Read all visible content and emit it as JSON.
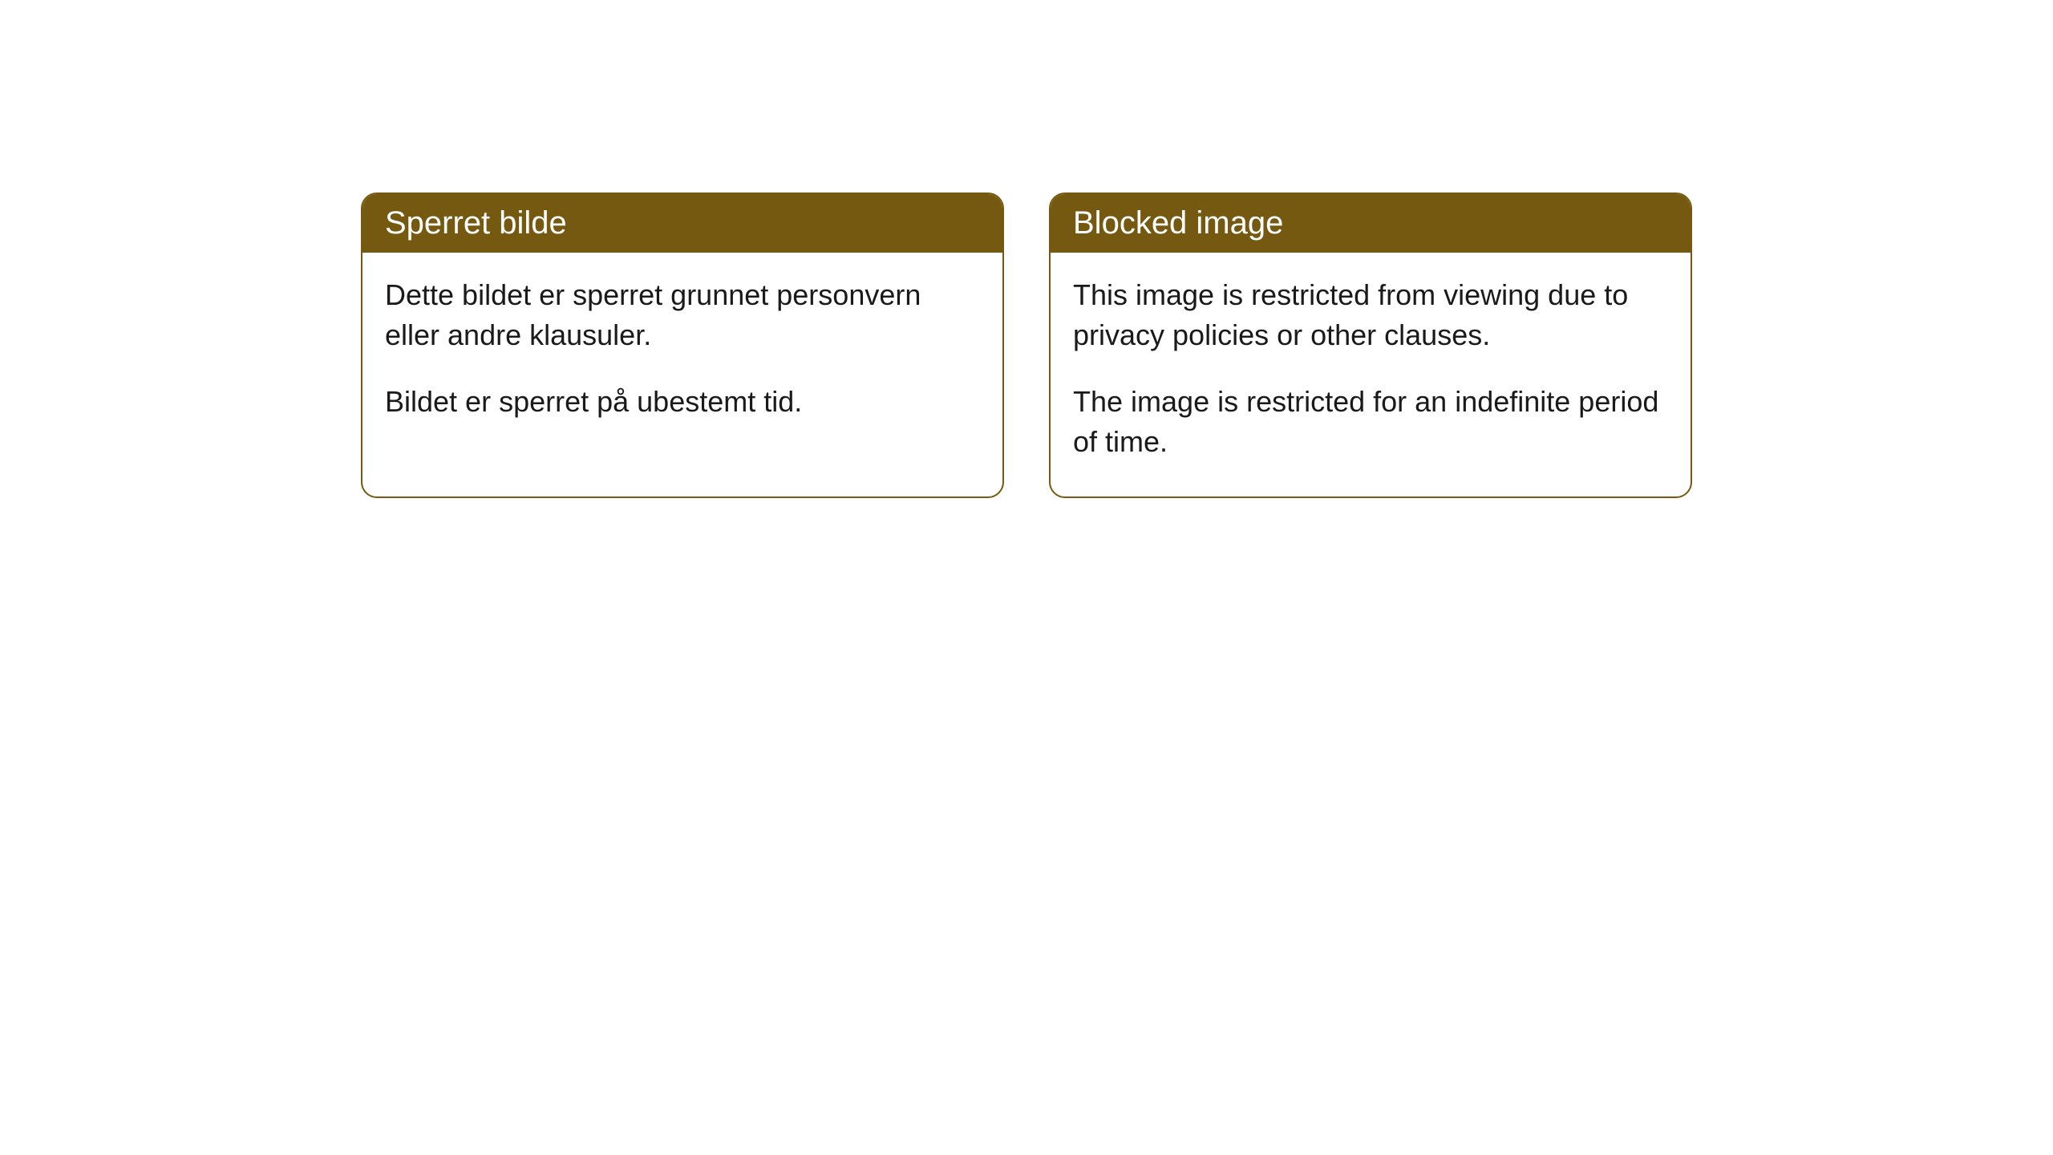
{
  "cards": [
    {
      "title": "Sperret bilde",
      "paragraph1": "Dette bildet er sperret grunnet personvern eller andre klausuler.",
      "paragraph2": "Bildet er sperret på ubestemt tid."
    },
    {
      "title": "Blocked image",
      "paragraph1": "This image is restricted from viewing due to privacy policies or other clauses.",
      "paragraph2": "The image is restricted for an indefinite period of time."
    }
  ],
  "styling": {
    "header_background_color": "#755910",
    "header_text_color": "#ffffff",
    "border_color": "#755910",
    "border_radius": 20,
    "card_background_color": "#ffffff",
    "body_text_color": "#1a1a1a",
    "page_background_color": "#ffffff",
    "title_fontsize": 40,
    "body_fontsize": 36,
    "card_gap": 56
  }
}
